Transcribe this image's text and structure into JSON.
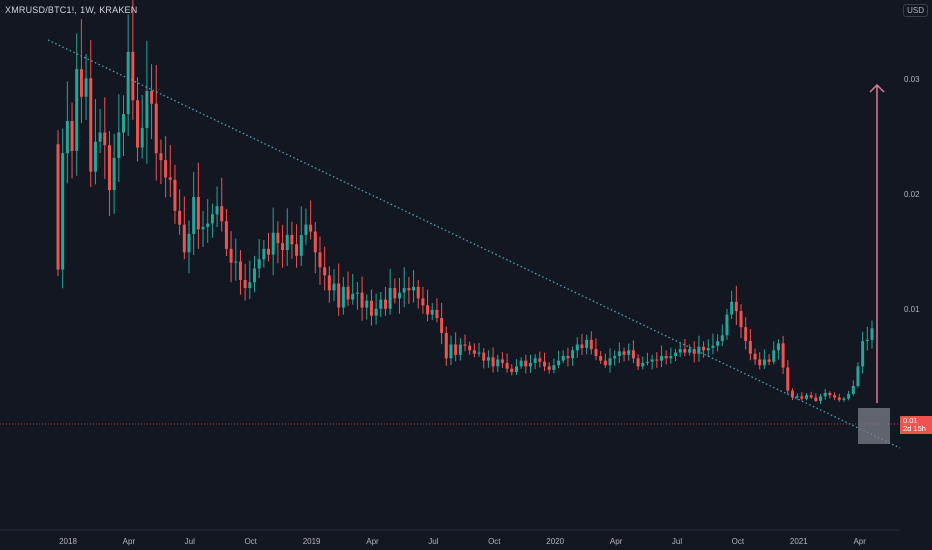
{
  "header": {
    "pair": "XMRUSD/BTC1!,",
    "interval": "1W,",
    "exchange": "KRAKEN",
    "currency_badge": "USD"
  },
  "price_badge": {
    "price": "0.01",
    "countdown": "2d 15h"
  },
  "colors": {
    "background": "#131722",
    "up": "#26a69a",
    "down": "#ef5350",
    "trendline": "#4aa3b5",
    "target_arrow": "#e07a9a",
    "highlight_box": "#7a7f8a",
    "price_line": "#ef5350"
  },
  "chart_data": {
    "type": "candlestick",
    "title": "XMRUSD/BTC1!, 1W, KRAKEN",
    "y_tick_labels": [
      "0.03",
      "0.02",
      "0.01"
    ],
    "y_ticks": [
      0.03,
      0.02,
      0.01
    ],
    "ylim": [
      -0.009,
      0.037
    ],
    "x_tick_labels": [
      "2018",
      "Apr",
      "Jul",
      "Oct",
      "2019",
      "Apr",
      "Jul",
      "Oct",
      "2020",
      "Apr",
      "Jul",
      "Oct",
      "2021",
      "Apr"
    ],
    "x_ticks": [
      "2018-01",
      "2018-04",
      "2018-07",
      "2018-10",
      "2019-01",
      "2019-04",
      "2019-07",
      "2019-10",
      "2020-01",
      "2020-04",
      "2020-07",
      "2020-10",
      "2021-01",
      "2021-04"
    ],
    "current_price": 0.0085,
    "current_price_label": "0.01",
    "grid": false,
    "candles_weekly_close": [
      0.0136,
      0.0237,
      0.0265,
      0.0239,
      0.031,
      0.0286,
      0.0302,
      0.0221,
      0.0247,
      0.0255,
      0.0244,
      0.0205,
      0.0233,
      0.0255,
      0.0271,
      0.0325,
      0.0283,
      0.0242,
      0.0259,
      0.0291,
      0.028,
      0.0237,
      0.0231,
      0.0216,
      0.0214,
      0.0187,
      0.0175,
      0.0151,
      0.0167,
      0.0199,
      0.0171,
      0.0173,
      0.0176,
      0.0184,
      0.0191,
      0.0178,
      0.0154,
      0.0142,
      0.0143,
      0.0127,
      0.012,
      0.0125,
      0.0137,
      0.0145,
      0.0154,
      0.0149,
      0.0168,
      0.0159,
      0.0153,
      0.0166,
      0.0158,
      0.0148,
      0.0166,
      0.0175,
      0.0169,
      0.0151,
      0.0138,
      0.0131,
      0.0118,
      0.0124,
      0.0103,
      0.0121,
      0.011,
      0.0115,
      0.0116,
      0.0103,
      0.0109,
      0.0096,
      0.0102,
      0.011,
      0.0102,
      0.012,
      0.0111,
      0.0116,
      0.012,
      0.0118,
      0.0121,
      0.0111,
      0.0105,
      0.0097,
      0.0101,
      0.0094,
      0.0081,
      0.0059,
      0.0071,
      0.0062,
      0.0071,
      0.007,
      0.0066,
      0.0063,
      0.0064,
      0.0057,
      0.006,
      0.0052,
      0.0058,
      0.0055,
      0.005,
      0.0047,
      0.0052,
      0.0057,
      0.0052,
      0.0055,
      0.0059,
      0.0056,
      0.0052,
      0.0049,
      0.0053,
      0.0057,
      0.0061,
      0.0059,
      0.0066,
      0.0071,
      0.0068,
      0.0075,
      0.0067,
      0.0061,
      0.0057,
      0.0053,
      0.0059,
      0.0061,
      0.0065,
      0.0062,
      0.0066,
      0.0059,
      0.0052,
      0.0055,
      0.0056,
      0.0058,
      0.0057,
      0.0061,
      0.0059,
      0.0061,
      0.0064,
      0.0067,
      0.0064,
      0.0067,
      0.0063,
      0.0069,
      0.0066,
      0.0068,
      0.007,
      0.0074,
      0.0079,
      0.0097,
      0.0108,
      0.01,
      0.0086,
      0.0074,
      0.0063,
      0.0058,
      0.0053,
      0.0058,
      0.0056,
      0.0066,
      0.0072,
      0.0051,
      0.0031,
      0.0025,
      0.0026,
      0.0024,
      0.0027,
      0.0025,
      0.0022,
      0.0026,
      0.0029,
      0.0027,
      0.0025,
      0.0023,
      0.0024,
      0.0028,
      0.0035,
      0.0052,
      0.0074,
      0.0075,
      0.0085
    ]
  }
}
